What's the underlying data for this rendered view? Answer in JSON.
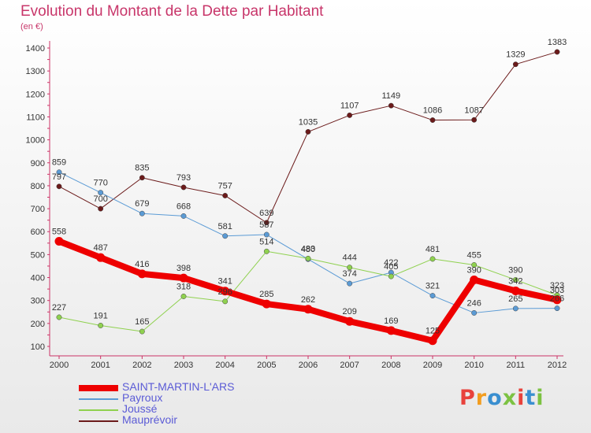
{
  "header": {
    "title": "Evolution du Montant de la Dette par Habitant",
    "subtitle": "(en €)"
  },
  "logo": {
    "text": "Proxiti",
    "colors": [
      "#e8423c",
      "#f29d1f",
      "#3a8fd0",
      "#7cc242",
      "#e8423c",
      "#3a8fd0",
      "#7cc242"
    ]
  },
  "chart_data": {
    "type": "line",
    "title": "Evolution du Montant de la Dette par Habitant",
    "ylabel": "(en €)",
    "x": [
      2000,
      2001,
      2002,
      2003,
      2004,
      2005,
      2006,
      2007,
      2008,
      2009,
      2010,
      2011,
      2012
    ],
    "ylim": [
      100,
      1400
    ],
    "yticks": [
      100,
      200,
      300,
      400,
      500,
      600,
      700,
      800,
      900,
      1000,
      1100,
      1200,
      1300,
      1400
    ],
    "grid": false,
    "legend_position": "bottom-left",
    "series": [
      {
        "name": "Mauprévoir",
        "color": "#6b1a1a",
        "values": [
          797,
          700,
          835,
          793,
          757,
          639,
          1035,
          1107,
          1149,
          1086,
          1087,
          1329,
          1383
        ]
      },
      {
        "name": "Payroux",
        "color": "#5b9bd5",
        "values": [
          859,
          770,
          679,
          668,
          581,
          587,
          480,
          374,
          422,
          321,
          246,
          265,
          266
        ]
      },
      {
        "name": "Joussé",
        "color": "#8fd14f",
        "values": [
          227,
          191,
          165,
          318,
          296,
          514,
          483,
          444,
          405,
          481,
          455,
          390,
          323
        ]
      },
      {
        "name": "SAINT-MARTIN-L'ARS",
        "color": "#ee0000",
        "values": [
          558,
          487,
          416,
          398,
          341,
          285,
          262,
          209,
          169,
          125,
          390,
          342,
          303
        ]
      }
    ],
    "data_labels": {
      "Mauprévoir": [
        "797",
        "700",
        "835",
        "793",
        "757",
        "639",
        "1035",
        "1107",
        "1149",
        "1086",
        "1087",
        "1329",
        "1383"
      ],
      "Payroux": [
        "859",
        "770",
        "679",
        "668",
        "581",
        "587",
        "480",
        "374",
        "422",
        "321",
        "246",
        "265",
        "266"
      ],
      "Joussé": [
        "227",
        "191",
        "165",
        "318",
        "296",
        "514",
        "483",
        "444",
        "405",
        "481",
        "455",
        "390",
        "323"
      ],
      "SAINT-MARTIN-L'ARS": [
        "558",
        "487",
        "416",
        "398",
        "341",
        "285",
        "262",
        "209",
        "169",
        "125",
        "390",
        "342",
        "303"
      ]
    },
    "legend": [
      "SAINT-MARTIN-L'ARS",
      "Payroux",
      "Joussé",
      "Mauprévoir"
    ]
  }
}
